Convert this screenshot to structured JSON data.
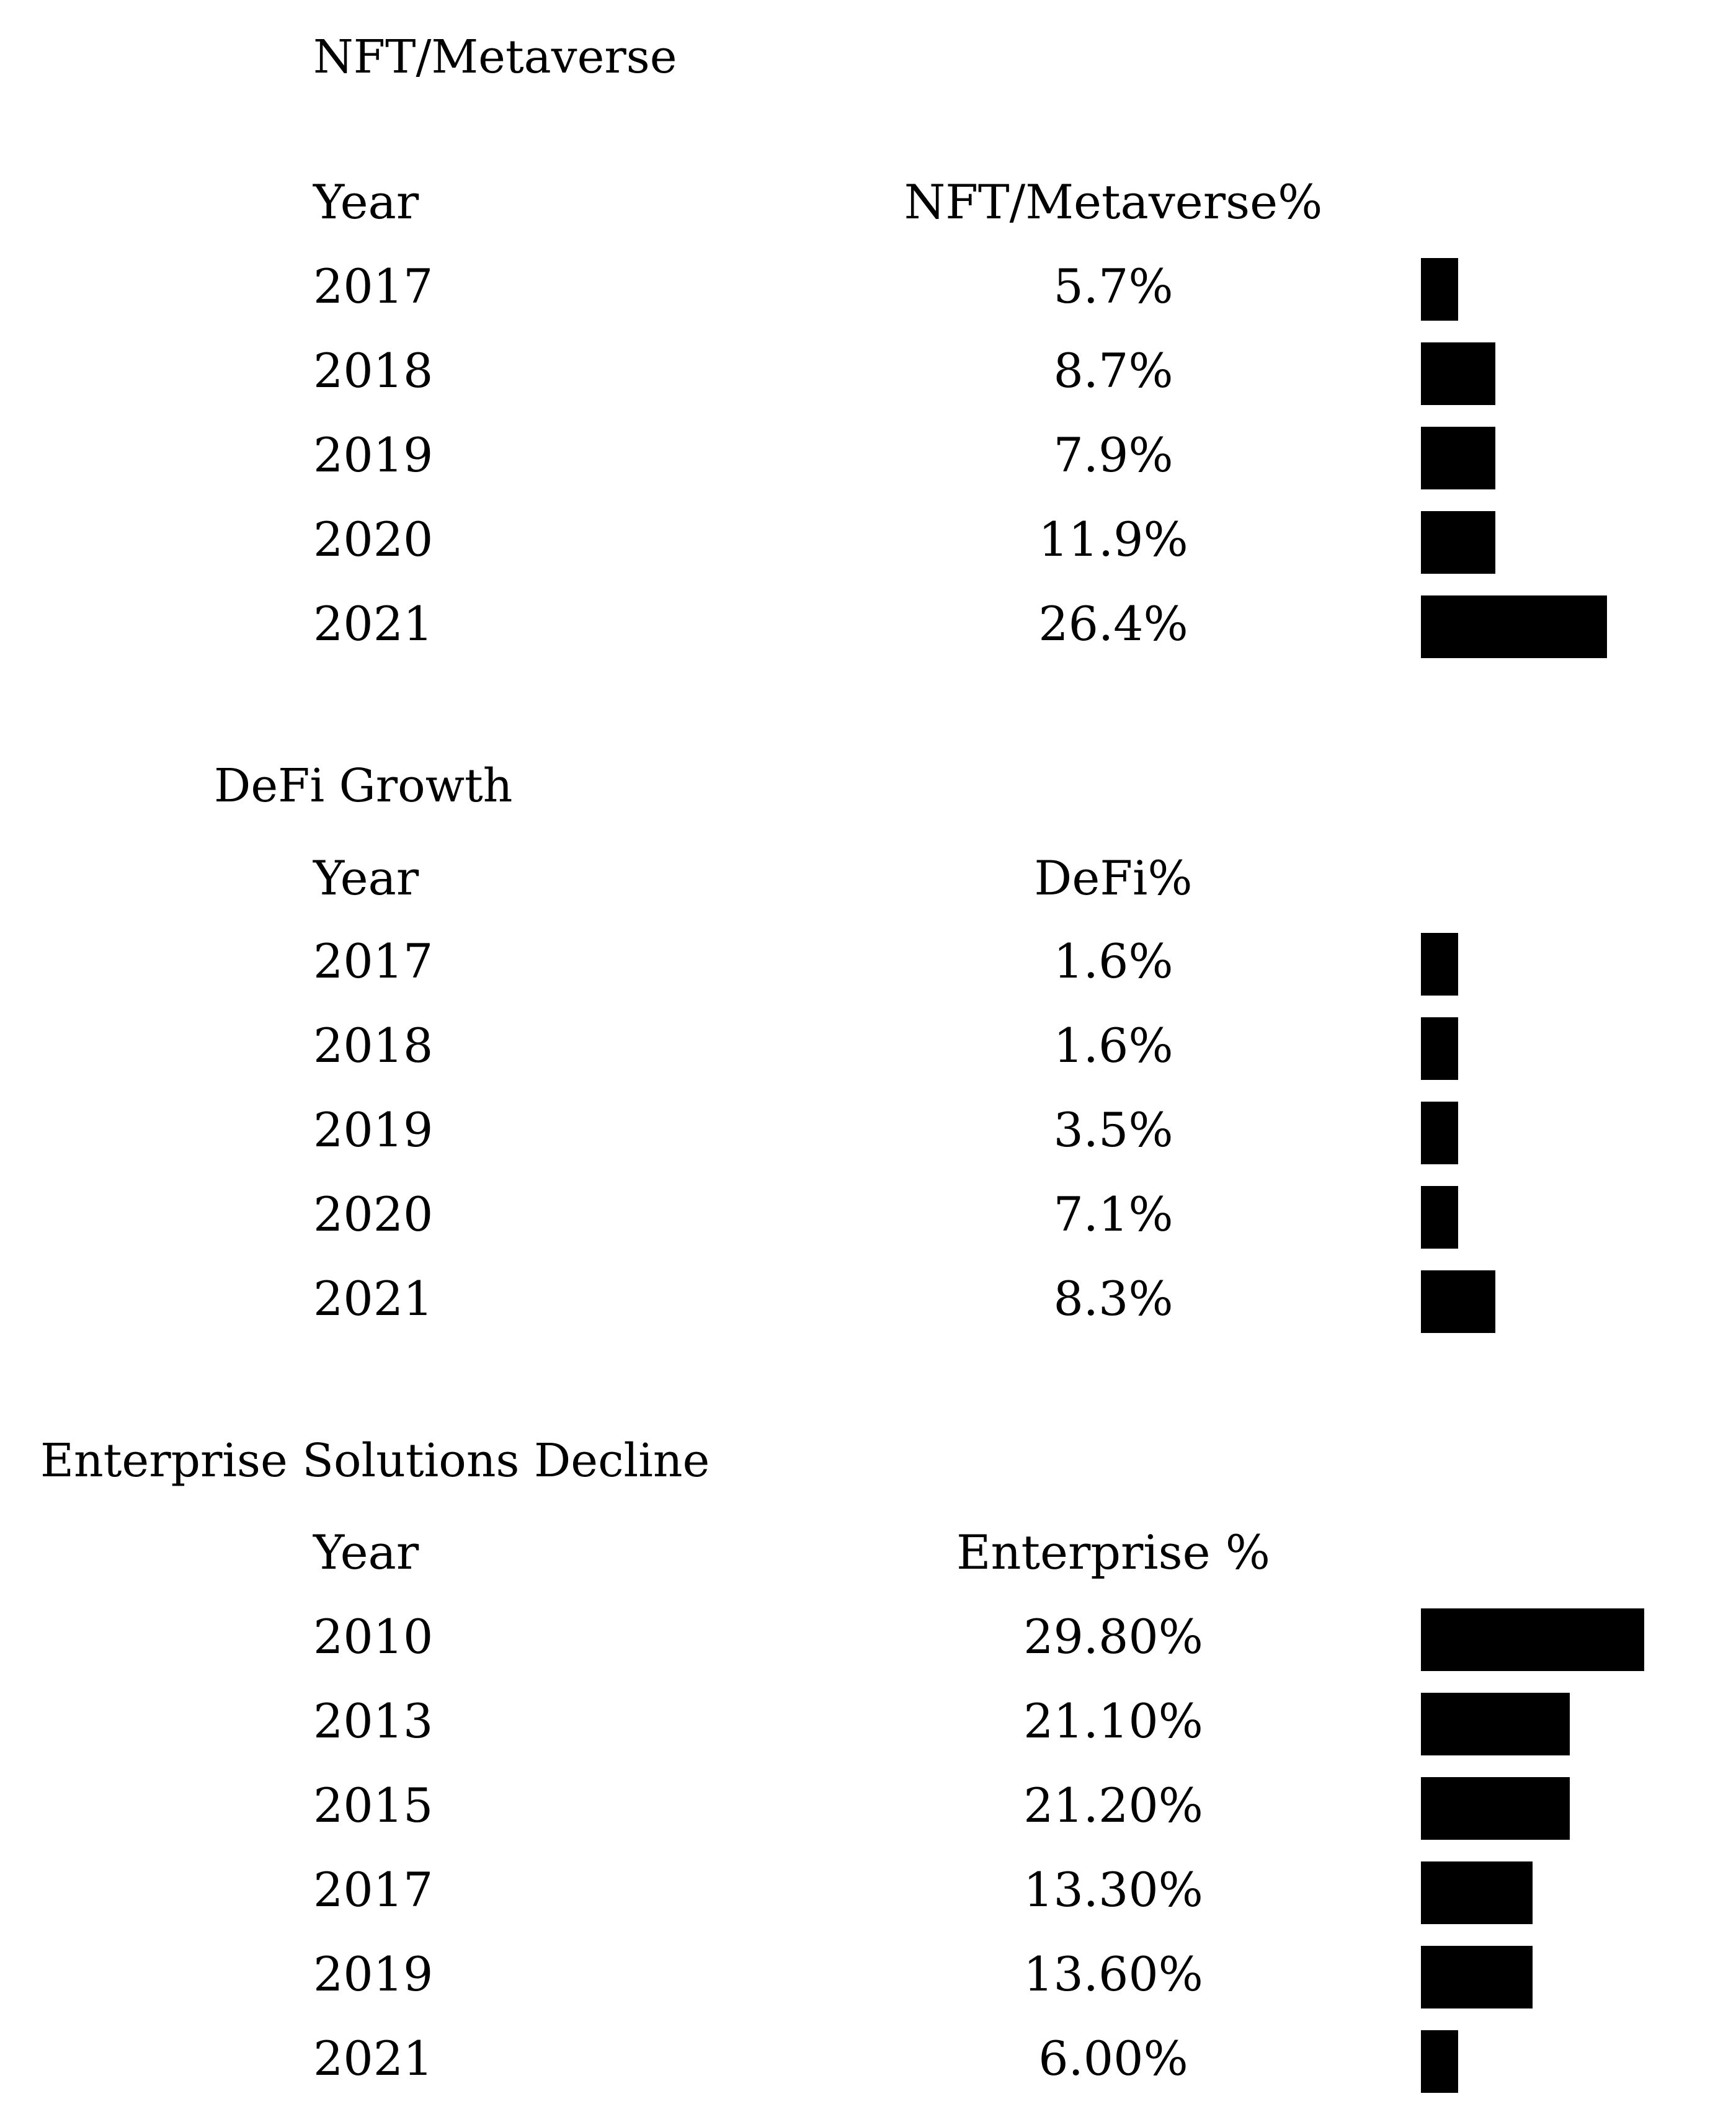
{
  "chart_data": [
    {
      "type": "bar",
      "title": "NFT/Metaverse",
      "header": {
        "year": "Year",
        "value": "NFT/Metaverse%"
      },
      "categories": [
        "2017",
        "2018",
        "2019",
        "2020",
        "2021"
      ],
      "labels": [
        "5.7%",
        "8.7%",
        "7.9%",
        "11.9%",
        "26.4%"
      ],
      "values": [
        5.7,
        8.7,
        7.9,
        11.9,
        26.4
      ]
    },
    {
      "type": "bar",
      "title": "DeFi Growth",
      "header": {
        "year": "Year",
        "value": "DeFi%"
      },
      "categories": [
        "2017",
        "2018",
        "2019",
        "2020",
        "2021"
      ],
      "labels": [
        "1.6%",
        "1.6%",
        "3.5%",
        "7.1%",
        "8.3%"
      ],
      "values": [
        1.6,
        1.6,
        3.5,
        7.1,
        8.3
      ]
    },
    {
      "type": "bar",
      "title": "Enterprise Solutions Decline",
      "header": {
        "year": "Year",
        "value": "Enterprise %"
      },
      "categories": [
        "2010",
        "2013",
        "2015",
        "2017",
        "2019",
        "2021"
      ],
      "labels": [
        "29.80%",
        "21.10%",
        "21.20%",
        "13.30%",
        "13.60%",
        "6.00%"
      ],
      "values": [
        29.8,
        21.1,
        21.2,
        13.3,
        13.6,
        6.0
      ]
    }
  ]
}
